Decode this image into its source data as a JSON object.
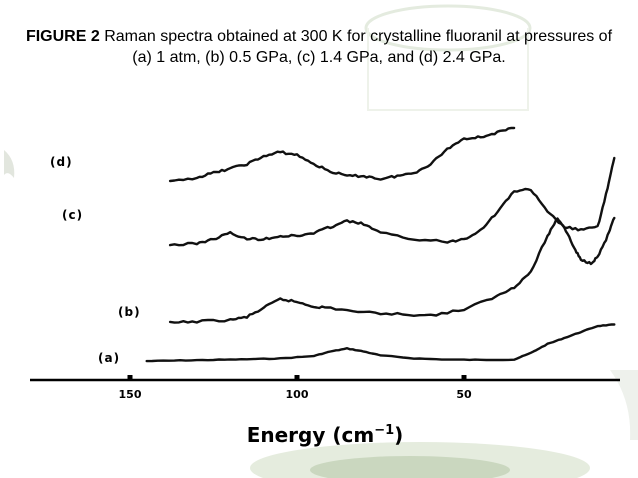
{
  "caption": {
    "label": "FIGURE 2",
    "text": "Raman spectra obtained at 300 K for crystalline fluoranil at pressures of (a) 1 atm, (b) 0.5 GPa, (c) 1.4 GPa, and (d) 2.4 GPa."
  },
  "chart_data": {
    "type": "line",
    "title": "FIGURE 2 Raman spectra obtained at 300 K for crystalline fluoranil at pressures of (a) 1 atm, (b) 0.5 GPa, (c) 1.4 GPa, and (d) 2.4 GPa.",
    "xlabel_main": "Energy (cm",
    "xlabel_sup": "−1",
    "xlabel_end": ")",
    "xlim": [
      180,
      5
    ],
    "x_reversed": true,
    "x_ticks": [
      150,
      100,
      50
    ],
    "y_axis_shown": false,
    "grid": false,
    "series": [
      {
        "name": "(a)",
        "x": [
          145,
          135,
          125,
          115,
          105,
          95,
          90,
          85,
          80,
          75,
          65,
          55,
          45,
          35,
          30,
          25,
          20,
          15,
          10,
          5
        ],
        "y": [
          0.3,
          0.5,
          0.7,
          0.9,
          1.2,
          2,
          3.5,
          4.5,
          3.5,
          2.2,
          1.2,
          0.8,
          0.7,
          0.8,
          3,
          6,
          8,
          10,
          12,
          12.5
        ]
      },
      {
        "name": "(b)",
        "x": [
          138,
          130,
          120,
          115,
          110,
          105,
          100,
          95,
          90,
          80,
          70,
          60,
          50,
          40,
          35,
          30,
          25,
          22,
          20,
          17,
          15,
          12,
          10,
          7,
          5
        ],
        "y": [
          13,
          13.5,
          14,
          15,
          18,
          21,
          20,
          18.5,
          18,
          16.5,
          16,
          15.5,
          17.5,
          22,
          25,
          30,
          42,
          48,
          45,
          38,
          34,
          33,
          35,
          42,
          48
        ]
      },
      {
        "name": "(c)",
        "x": [
          138,
          130,
          125,
          120,
          115,
          110,
          105,
          100,
          95,
          90,
          85,
          80,
          75,
          65,
          55,
          50,
          45,
          40,
          35,
          30,
          25,
          20,
          15,
          10,
          7,
          5
        ],
        "y": [
          39,
          39.5,
          41,
          43,
          41,
          41,
          42,
          42,
          43,
          45,
          47,
          46,
          43,
          41,
          40,
          41,
          44,
          50,
          57,
          57.5,
          50,
          45,
          44,
          45,
          58,
          68
        ]
      },
      {
        "name": "(d)",
        "x": [
          138,
          130,
          125,
          120,
          115,
          110,
          105,
          100,
          95,
          90,
          85,
          80,
          75,
          70,
          65,
          60,
          55,
          50,
          45,
          40,
          35
        ],
        "y": [
          60,
          61.5,
          63,
          64.5,
          66,
          68.5,
          70,
          69,
          66,
          63.5,
          62,
          62,
          61,
          62,
          63,
          66,
          71,
          74.5,
          75,
          76.5,
          78
        ]
      }
    ]
  },
  "decor": {
    "glass_color": "#d9e6d0",
    "glass_dark": "#b9c8ad"
  }
}
